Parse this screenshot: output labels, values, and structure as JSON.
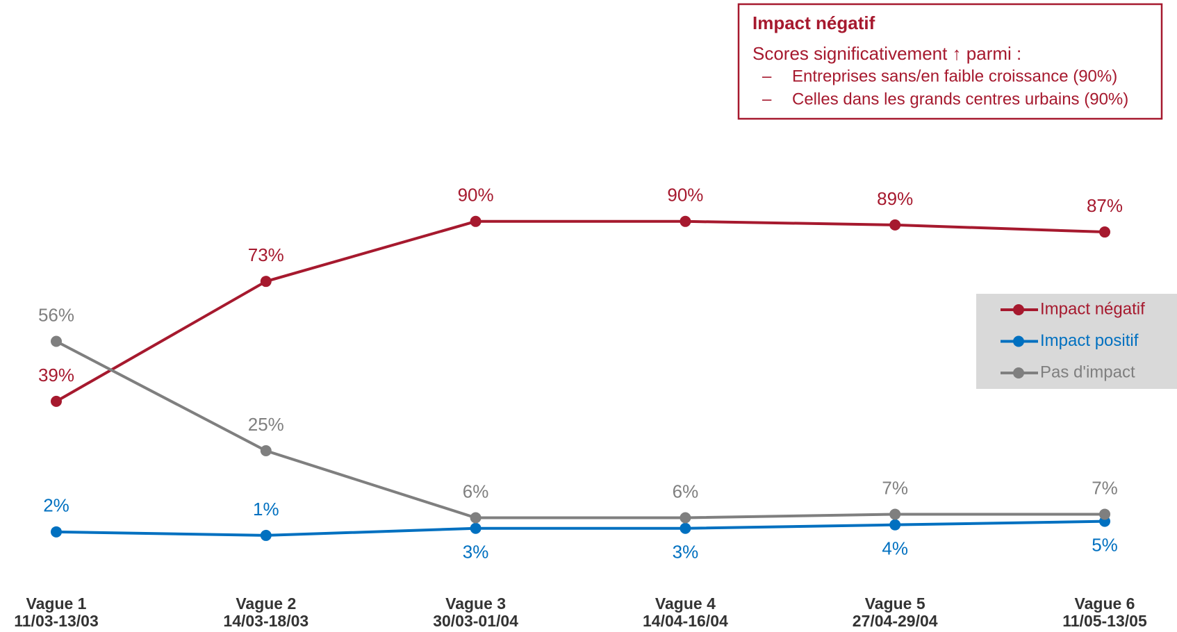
{
  "chart_data": {
    "type": "line",
    "categories": [
      "Vague 1",
      "Vague 2",
      "Vague 3",
      "Vague 4",
      "Vague 5",
      "Vague 6"
    ],
    "category_dates": [
      "11/03-13/03",
      "14/03-18/03",
      "30/03-01/04",
      "14/04-16/04",
      "27/04-29/04",
      "11/05-13/05"
    ],
    "ylim": [
      0,
      100
    ],
    "legend": "right",
    "series": [
      {
        "name": "Impact négatif",
        "color": "#a6192e",
        "values": [
          39,
          73,
          90,
          90,
          89,
          87
        ],
        "value_labels": [
          "39%",
          "73%",
          "90%",
          "90%",
          "89%",
          "87%"
        ]
      },
      {
        "name": "Impact positif",
        "color": "#0070c0",
        "values": [
          2,
          1,
          3,
          3,
          4,
          5
        ],
        "value_labels": [
          "2%",
          "1%",
          "3%",
          "3%",
          "4%",
          "5%"
        ]
      },
      {
        "name": "Pas d'impact",
        "color": "#7f7f7f",
        "values": [
          56,
          25,
          6,
          6,
          7,
          7
        ],
        "value_labels": [
          "56%",
          "25%",
          "6%",
          "6%",
          "7%",
          "7%"
        ]
      }
    ],
    "note": {
      "title": "Impact négatif",
      "text": "Scores significativement ↑ parmi :",
      "bullets": [
        "Entreprises sans/en faible croissance (90%)",
        "Celles dans les grands centres urbains (90%)"
      ]
    }
  }
}
